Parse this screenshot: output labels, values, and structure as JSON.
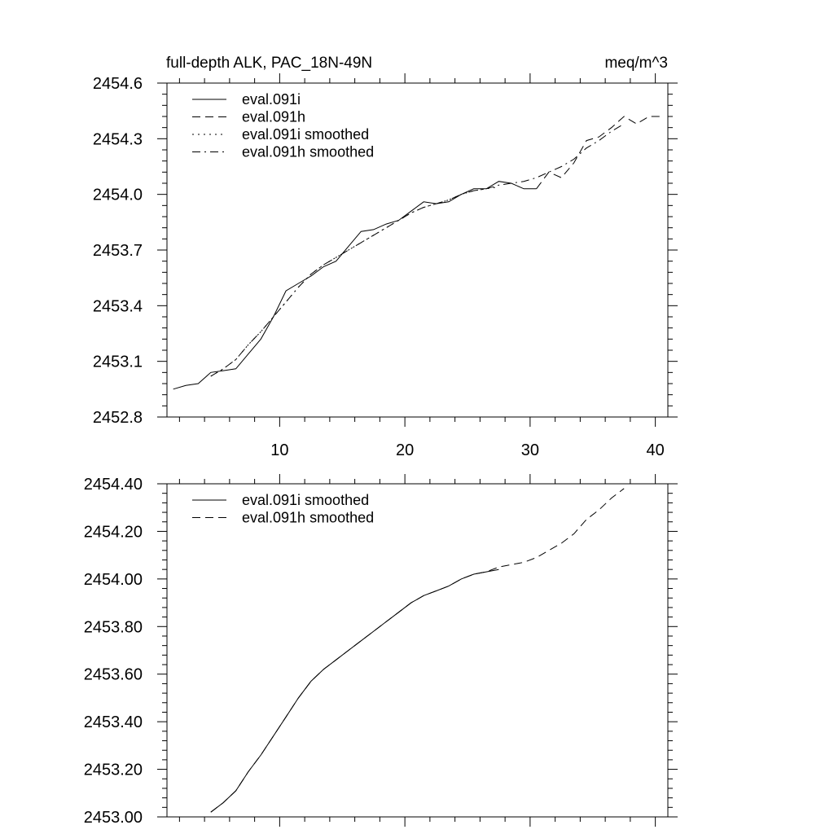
{
  "chart_data": [
    {
      "type": "line",
      "title": "full-depth ALK, PAC_18N-49N",
      "units": "meq/m^3",
      "xlim": [
        1,
        41
      ],
      "ylim": [
        2452.8,
        2454.6
      ],
      "xticks": [
        10,
        20,
        30,
        40
      ],
      "xtick_labels": [
        "10",
        "20",
        "30",
        "40"
      ],
      "yticks": [
        2452.8,
        2453.1,
        2453.4,
        2453.7,
        2454.0,
        2454.3,
        2454.6
      ],
      "ytick_labels": [
        "2452.8",
        "2453.1",
        "2453.4",
        "2453.7",
        "2454.0",
        "2454.3",
        "2454.6"
      ],
      "legend": [
        "eval.091i",
        "eval.091h",
        "eval.091i smoothed",
        "eval.091h smoothed"
      ],
      "series": [
        {
          "name": "eval.091i",
          "style": "solid",
          "x": [
            1.5,
            2.5,
            3.5,
            4.5,
            5.5,
            6.5,
            7.5,
            8.5,
            9.5,
            10.5,
            11.5,
            12.5,
            13.5,
            14.5,
            15.5,
            16.5,
            17.5,
            18.5,
            19.5,
            20.5,
            21.5,
            22.5,
            23.5,
            24.5,
            25.5,
            26.5,
            27.5,
            28.5,
            29.5,
            30.5
          ],
          "values": [
            2452.95,
            2452.97,
            2452.98,
            2453.04,
            2453.05,
            2453.06,
            2453.14,
            2453.22,
            2453.34,
            2453.48,
            2453.52,
            2453.56,
            2453.61,
            2453.64,
            2453.72,
            2453.8,
            2453.81,
            2453.84,
            2453.86,
            2453.91,
            2453.96,
            2453.95,
            2453.96,
            2454.0,
            2454.03,
            2454.03,
            2454.07,
            2454.06,
            2454.03,
            2454.03
          ]
        },
        {
          "name": "eval.091h",
          "style": "dash",
          "x": [
            30.5,
            31.5,
            32.5,
            33.5,
            34.5,
            35.5,
            36.5,
            37.5,
            38.5,
            39.5,
            40.5
          ],
          "values": [
            2454.03,
            2454.12,
            2454.09,
            2454.17,
            2454.29,
            2454.31,
            2454.36,
            2454.42,
            2454.38,
            2454.42,
            2454.42
          ]
        },
        {
          "name": "eval.091i smoothed",
          "style": "dot",
          "x": [
            4.5,
            5.5,
            6.5,
            7.5,
            8.5,
            9.5,
            10.5,
            11.5,
            12.5,
            13.5,
            14.5,
            15.5,
            16.5,
            17.5,
            18.5,
            19.5,
            20.5,
            21.5,
            22.5,
            23.5,
            24.5,
            25.5,
            26.5,
            27.5
          ],
          "values": [
            2453.02,
            2453.06,
            2453.11,
            2453.19,
            2453.26,
            2453.34,
            2453.42,
            2453.5,
            2453.57,
            2453.62,
            2453.66,
            2453.7,
            2453.74,
            2453.78,
            2453.82,
            2453.86,
            2453.9,
            2453.93,
            2453.95,
            2453.97,
            2454.0,
            2454.02,
            2454.03,
            2454.04
          ]
        },
        {
          "name": "eval.091h smoothed",
          "style": "dashdot",
          "x": [
            4.5,
            5.5,
            6.5,
            7.5,
            8.5,
            9.5,
            10.5,
            11.5,
            12.5,
            13.5,
            14.5,
            15.5,
            16.5,
            17.5,
            18.5,
            19.5,
            20.5,
            21.5,
            22.5,
            23.5,
            24.5,
            25.5,
            26.5,
            27.5,
            28.5,
            29.5,
            30.5,
            31.5,
            32.5,
            33.5,
            34.5,
            35.5,
            36.5,
            37.5
          ],
          "values": [
            2453.02,
            2453.06,
            2453.11,
            2453.19,
            2453.26,
            2453.34,
            2453.42,
            2453.5,
            2453.57,
            2453.62,
            2453.66,
            2453.7,
            2453.74,
            2453.78,
            2453.82,
            2453.86,
            2453.9,
            2453.93,
            2453.95,
            2453.97,
            2454.0,
            2454.02,
            2454.03,
            2454.05,
            2454.06,
            2454.07,
            2454.09,
            2454.12,
            2454.15,
            2454.19,
            2454.25,
            2454.29,
            2454.34,
            2454.38
          ]
        }
      ]
    },
    {
      "type": "line",
      "title": "",
      "xlim": [
        1,
        41
      ],
      "ylim": [
        2453.0,
        2454.4
      ],
      "xticks": [
        10,
        20,
        30,
        40
      ],
      "yticks": [
        2453.0,
        2453.2,
        2453.4,
        2453.6,
        2453.8,
        2454.0,
        2454.2,
        2454.4
      ],
      "ytick_labels": [
        "2453.00",
        "2453.20",
        "2453.40",
        "2453.60",
        "2453.80",
        "2454.00",
        "2454.20",
        "2454.40"
      ],
      "legend": [
        "eval.091i smoothed",
        "eval.091h smoothed"
      ],
      "series": [
        {
          "name": "eval.091i smoothed",
          "style": "solid",
          "x": [
            4.5,
            5.5,
            6.5,
            7.5,
            8.5,
            9.5,
            10.5,
            11.5,
            12.5,
            13.5,
            14.5,
            15.5,
            16.5,
            17.5,
            18.5,
            19.5,
            20.5,
            21.5,
            22.5,
            23.5,
            24.5,
            25.5,
            26.5,
            27.5
          ],
          "values": [
            2453.02,
            2453.06,
            2453.11,
            2453.19,
            2453.26,
            2453.34,
            2453.42,
            2453.5,
            2453.57,
            2453.62,
            2453.66,
            2453.7,
            2453.74,
            2453.78,
            2453.82,
            2453.86,
            2453.9,
            2453.93,
            2453.95,
            2453.97,
            2454.0,
            2454.02,
            2454.03,
            2454.04
          ]
        },
        {
          "name": "eval.091h smoothed",
          "style": "dash",
          "x": [
            4.5,
            5.5,
            6.5,
            7.5,
            8.5,
            9.5,
            10.5,
            11.5,
            12.5,
            13.5,
            14.5,
            15.5,
            16.5,
            17.5,
            18.5,
            19.5,
            20.5,
            21.5,
            22.5,
            23.5,
            24.5,
            25.5,
            26.5,
            27.5,
            28.5,
            29.5,
            30.5,
            31.5,
            32.5,
            33.5,
            34.5,
            35.5,
            36.5,
            37.5
          ],
          "values": [
            2453.02,
            2453.06,
            2453.11,
            2453.19,
            2453.26,
            2453.34,
            2453.42,
            2453.5,
            2453.57,
            2453.62,
            2453.66,
            2453.7,
            2453.74,
            2453.78,
            2453.82,
            2453.86,
            2453.9,
            2453.93,
            2453.95,
            2453.97,
            2454.0,
            2454.02,
            2454.03,
            2454.05,
            2454.06,
            2454.07,
            2454.09,
            2454.12,
            2454.15,
            2454.19,
            2454.25,
            2454.29,
            2454.34,
            2454.38
          ]
        }
      ]
    }
  ]
}
